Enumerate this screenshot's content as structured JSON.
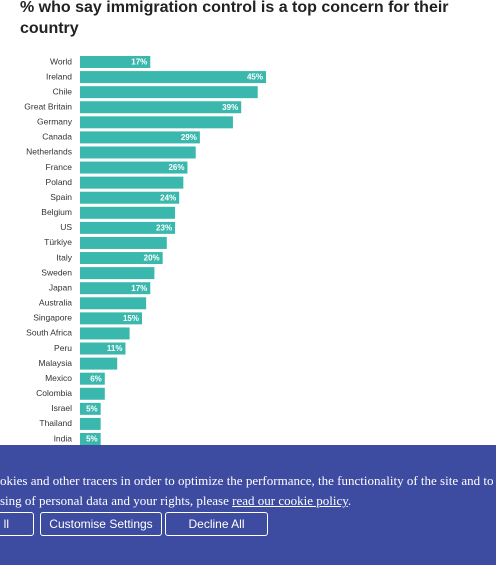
{
  "chart_data": {
    "type": "bar",
    "orientation": "horizontal",
    "title": "% who say immigration control is a top concern for their country",
    "categories": [
      "World",
      "Ireland",
      "Chile",
      "Great Britain",
      "Germany",
      "Canada",
      "Netherlands",
      "France",
      "Poland",
      "Spain",
      "Belgium",
      "US",
      "Türkiye",
      "Italy",
      "Sweden",
      "Japan",
      "Australia",
      "Singapore",
      "South Africa",
      "Peru",
      "Malaysia",
      "Mexico",
      "Colombia",
      "Israel",
      "Thailand",
      "India"
    ],
    "values": [
      17,
      45,
      43,
      39,
      37,
      29,
      28,
      26,
      25,
      24,
      23,
      23,
      21,
      20,
      18,
      17,
      16,
      15,
      12,
      11,
      9,
      6,
      6,
      5,
      5,
      5
    ],
    "value_labels": [
      "17%",
      "45%",
      null,
      "39%",
      null,
      "29%",
      null,
      "26%",
      null,
      "24%",
      null,
      "23%",
      null,
      "20%",
      null,
      "17%",
      null,
      "15%",
      null,
      "11%",
      null,
      "6%",
      null,
      "5%",
      null,
      "5%"
    ],
    "color": "#3bb8ad"
  },
  "cookie_banner": {
    "line1": "okies and other tracers in order to optimize the performance, the functionality of the site and to",
    "line2_start": "sing of personal data and your rights, please ",
    "link": "read our cookie policy",
    "line2_end": ".",
    "buttons": [
      "ll",
      "Customise Settings",
      "Decline All"
    ]
  }
}
